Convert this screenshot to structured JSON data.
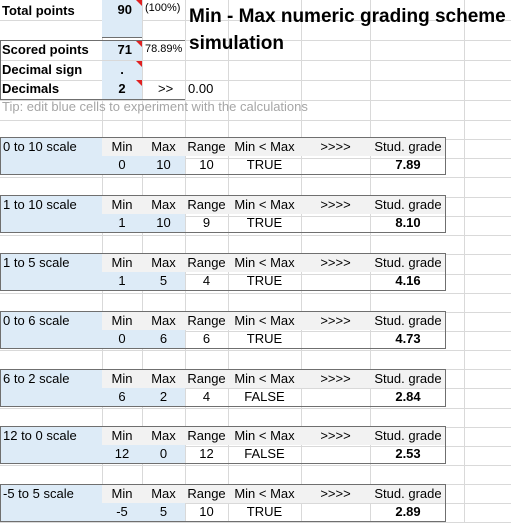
{
  "settings": {
    "total_points_label": "Total points",
    "total_points_value": "90",
    "total_points_note": "(100%)",
    "scored_points_label": "Scored points",
    "scored_points_value": "71",
    "scored_points_pct": "78.89%",
    "decimal_sign_label": "Decimal sign",
    "decimal_sign_value": ".",
    "decimals_label": "Decimals",
    "decimals_value": "2",
    "decimals_arrow": ">>",
    "decimals_example": "0.00"
  },
  "title_line1": "Min - Max numeric grading scheme",
  "title_line2": "simulation",
  "tip": "Tip: edit blue cells to experiment with the calculations",
  "headers": {
    "min": "Min",
    "max": "Max",
    "range": "Range",
    "check": "Min < Max",
    "arrows": ">>>>",
    "grade": "Stud. grade"
  },
  "scales": [
    {
      "name": "0 to 10 scale",
      "min": "0",
      "max": "10",
      "range": "10",
      "check": "TRUE",
      "grade": "7.89"
    },
    {
      "name": "1 to 10 scale",
      "min": "1",
      "max": "10",
      "range": "9",
      "check": "TRUE",
      "grade": "8.10"
    },
    {
      "name": "1 to 5 scale",
      "min": "1",
      "max": "5",
      "range": "4",
      "check": "TRUE",
      "grade": "4.16"
    },
    {
      "name": "0 to 6 scale",
      "min": "0",
      "max": "6",
      "range": "6",
      "check": "TRUE",
      "grade": "4.73"
    },
    {
      "name": "6 to 2 scale",
      "min": "6",
      "max": "2",
      "range": "4",
      "check": "FALSE",
      "grade": "2.84"
    },
    {
      "name": "12 to 0 scale",
      "min": "12",
      "max": "0",
      "range": "12",
      "check": "FALSE",
      "grade": "2.53"
    },
    {
      "name": "-5 to 5 scale",
      "min": "-5",
      "max": "5",
      "range": "10",
      "check": "TRUE",
      "grade": "2.89"
    }
  ]
}
